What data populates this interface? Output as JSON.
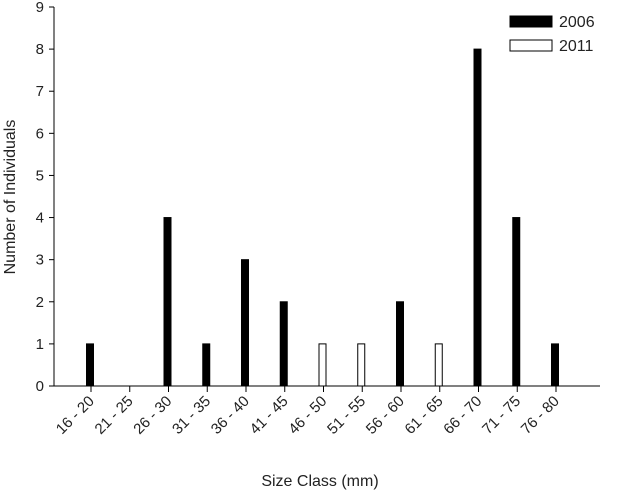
{
  "chart_data": {
    "type": "bar",
    "xlabel": "Size Class (mm)",
    "ylabel": "Number of Individuals",
    "ylim": [
      0,
      9
    ],
    "yticks": [
      0,
      1,
      2,
      3,
      4,
      5,
      6,
      7,
      8,
      9
    ],
    "categories": [
      "16 - 20",
      "21 - 25",
      "26 - 30",
      "31 - 35",
      "36 - 40",
      "41 - 45",
      "46 - 50",
      "51 - 55",
      "56 - 60",
      "61 - 65",
      "66 - 70",
      "71 - 75",
      "76 - 80"
    ],
    "series": [
      {
        "name": "2006",
        "color": "#000000",
        "values": [
          1,
          0,
          4,
          1,
          3,
          2,
          0,
          0,
          2,
          0,
          8,
          4,
          1
        ]
      },
      {
        "name": "2011",
        "color": "#ffffff",
        "values": [
          0,
          0,
          0,
          0,
          0,
          0,
          1,
          1,
          0,
          1,
          0,
          0,
          0
        ]
      }
    ],
    "legend": "top-right",
    "grid": false
  }
}
